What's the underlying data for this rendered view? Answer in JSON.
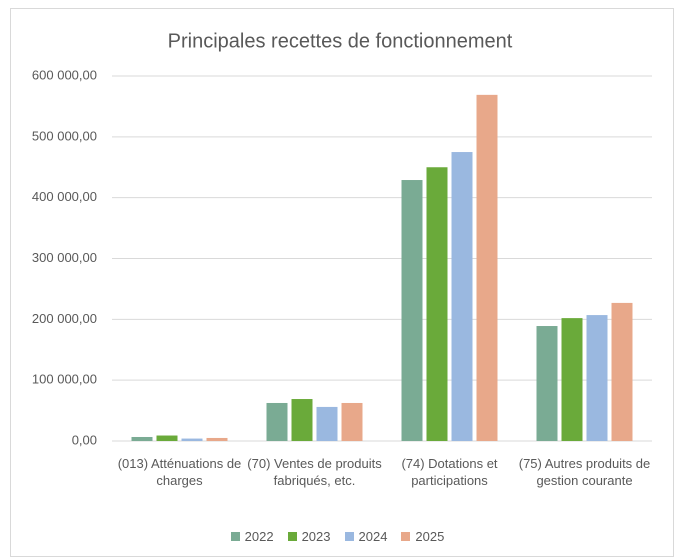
{
  "chart_data": {
    "type": "bar",
    "title": "Principales recettes de fonctionnement",
    "categories": [
      "(013) Atténuations de charges",
      "(70) Ventes de produits fabriqués, etc.",
      "(74) Dotations et participations",
      "(75) Autres produits de gestion courante"
    ],
    "series": [
      {
        "name": "2022",
        "color": "#7aab94",
        "values": [
          6600,
          62500,
          429000,
          189000
        ]
      },
      {
        "name": "2023",
        "color": "#6aaa3a",
        "values": [
          9000,
          69000,
          450000,
          202000
        ]
      },
      {
        "name": "2024",
        "color": "#9ab8e0",
        "values": [
          4000,
          56000,
          475000,
          207000
        ]
      },
      {
        "name": "2025",
        "color": "#e8a88a",
        "values": [
          5000,
          62500,
          569000,
          227000
        ]
      }
    ],
    "ylim": [
      0,
      600000
    ],
    "yticks": [
      {
        "value": 0,
        "label": "0,00"
      },
      {
        "value": 100000,
        "label": "100 000,00"
      },
      {
        "value": 200000,
        "label": "200 000,00"
      },
      {
        "value": 300000,
        "label": "300 000,00"
      },
      {
        "value": 400000,
        "label": "400 000,00"
      },
      {
        "value": 500000,
        "label": "500 000,00"
      },
      {
        "value": 600000,
        "label": "600 000,00"
      }
    ],
    "grid": true
  }
}
